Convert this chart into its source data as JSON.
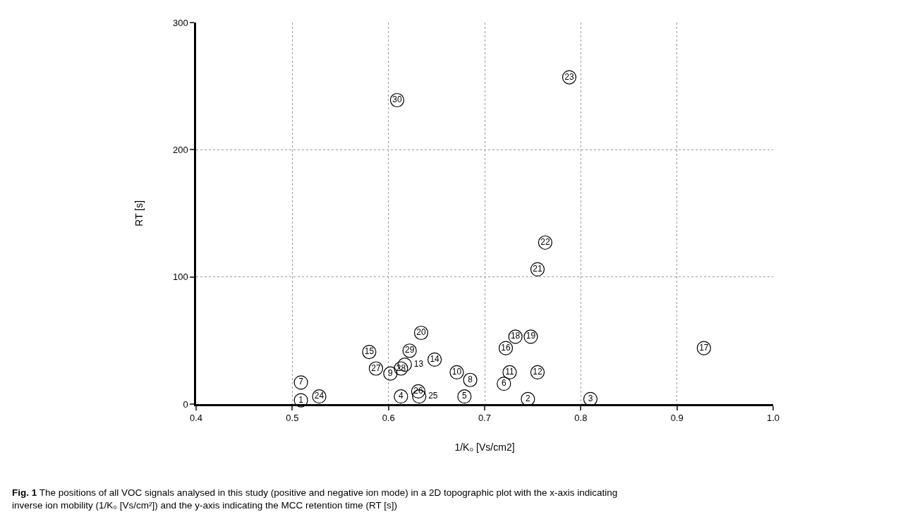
{
  "chart_data": {
    "type": "scatter",
    "xlabel": "1/K₀ [Vs/cm2]",
    "ylabel": "RT [s]",
    "annotations": [
      "Fig. 1 The positions of all VOC signals analysed in this study (positive and negative ion mode) in a 2D topographic plot with the x-axis indicating inverse ion mobility (1/K₀ [Vs/cm²]) and the y-axis indicating the MCC retention time (RT [s])"
    ],
    "series": [
      {
        "name": "1",
        "color": "#000000",
        "x": [
          0.509
        ],
        "values": [
          3
        ]
      },
      {
        "name": "2",
        "color": "#000000",
        "x": [
          0.745
        ],
        "values": [
          4
        ]
      },
      {
        "name": "3",
        "color": "#000000",
        "x": [
          0.81
        ],
        "values": [
          4
        ]
      },
      {
        "name": "4",
        "color": "#000000",
        "x": [
          0.613
        ],
        "values": [
          6
        ]
      },
      {
        "name": "5",
        "color": "#000000",
        "x": [
          0.679
        ],
        "values": [
          6
        ]
      },
      {
        "name": "6",
        "color": "#000000",
        "x": [
          0.72
        ],
        "values": [
          16
        ]
      },
      {
        "name": "7",
        "color": "#000000",
        "x": [
          0.509
        ],
        "values": [
          17
        ]
      },
      {
        "name": "8",
        "color": "#000000",
        "x": [
          0.685
        ],
        "values": [
          19
        ]
      },
      {
        "name": "9",
        "color": "#000000",
        "x": [
          0.602
        ],
        "values": [
          24
        ]
      },
      {
        "name": "10",
        "color": "#000000",
        "x": [
          0.671
        ],
        "values": [
          25
        ]
      },
      {
        "name": "11",
        "color": "#000000",
        "x": [
          0.726
        ],
        "values": [
          25
        ]
      },
      {
        "name": "12",
        "color": "#000000",
        "x": [
          0.755
        ],
        "values": [
          25
        ]
      },
      {
        "name": "13",
        "color": "#000000",
        "x": [
          0.617
        ],
        "values": [
          31
        ]
      },
      {
        "name": "14",
        "color": "#000000",
        "x": [
          0.648
        ],
        "values": [
          35
        ]
      },
      {
        "name": "15",
        "color": "#000000",
        "x": [
          0.58
        ],
        "values": [
          41
        ]
      },
      {
        "name": "16",
        "color": "#000000",
        "x": [
          0.722
        ],
        "values": [
          44
        ]
      },
      {
        "name": "17",
        "color": "#000000",
        "x": [
          0.928
        ],
        "values": [
          44
        ]
      },
      {
        "name": "18",
        "color": "#000000",
        "x": [
          0.732
        ],
        "values": [
          53
        ]
      },
      {
        "name": "19",
        "color": "#000000",
        "x": [
          0.748
        ],
        "values": [
          53
        ]
      },
      {
        "name": "20",
        "color": "#000000",
        "x": [
          0.634
        ],
        "values": [
          56
        ]
      },
      {
        "name": "21",
        "color": "#000000",
        "x": [
          0.755
        ],
        "values": [
          106
        ]
      },
      {
        "name": "22",
        "color": "#000000",
        "x": [
          0.763
        ],
        "values": [
          127
        ]
      },
      {
        "name": "23",
        "color": "#000000",
        "x": [
          0.788
        ],
        "values": [
          257
        ]
      },
      {
        "name": "24",
        "color": "#000000",
        "x": [
          0.528
        ],
        "values": [
          6
        ]
      },
      {
        "name": "25",
        "color": "#000000",
        "x": [
          0.632
        ],
        "values": [
          6
        ]
      },
      {
        "name": "26",
        "color": "#000000",
        "x": [
          0.631
        ],
        "values": [
          10
        ]
      },
      {
        "name": "27",
        "color": "#000000",
        "x": [
          0.587
        ],
        "values": [
          28
        ]
      },
      {
        "name": "28",
        "color": "#000000",
        "x": [
          0.613
        ],
        "values": [
          28
        ]
      },
      {
        "name": "29",
        "color": "#000000",
        "x": [
          0.622
        ],
        "values": [
          42
        ]
      },
      {
        "name": "30",
        "color": "#000000",
        "x": [
          0.609
        ],
        "values": [
          239
        ]
      }
    ],
    "xlim": [
      0.4,
      1.0
    ],
    "xticks": [
      0.4,
      0.5,
      0.6,
      0.7,
      0.8,
      0.9,
      {
        "value": 1.0,
        "label": "1.0"
      }
    ],
    "ylim": [
      0,
      300
    ],
    "yticks": [
      0,
      100,
      200,
      300
    ],
    "grid": true,
    "marker": "circle",
    "legend": false
  }
}
